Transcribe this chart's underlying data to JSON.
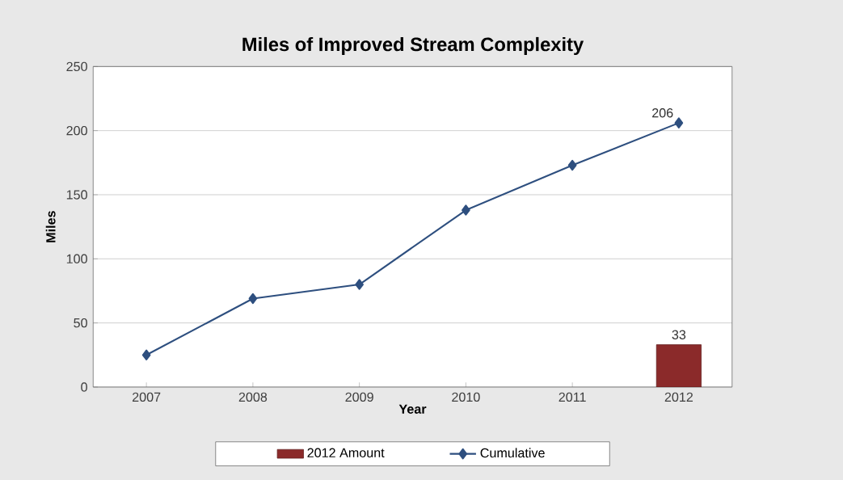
{
  "chart_data": {
    "type": "line",
    "title": "Miles of Improved Stream Complexity",
    "xlabel": "Year",
    "ylabel": "Miles",
    "categories": [
      "2007",
      "2008",
      "2009",
      "2010",
      "2011",
      "2012"
    ],
    "series": [
      {
        "name": "2012 Amount",
        "type": "bar",
        "color": "#8b2a2a",
        "values": [
          null,
          null,
          null,
          null,
          null,
          33
        ],
        "value_labels": [
          null,
          null,
          null,
          null,
          null,
          "33"
        ]
      },
      {
        "name": "Cumulative",
        "color": "#2e4f7f",
        "marker": "diamond",
        "values": [
          25,
          69,
          80,
          138,
          173,
          206
        ],
        "value_labels": [
          null,
          null,
          null,
          null,
          null,
          "206"
        ]
      }
    ],
    "ylim": [
      0,
      250
    ],
    "yticks": [
      0,
      50,
      100,
      150,
      200,
      250
    ],
    "grid": "y",
    "legend": "bottom"
  }
}
